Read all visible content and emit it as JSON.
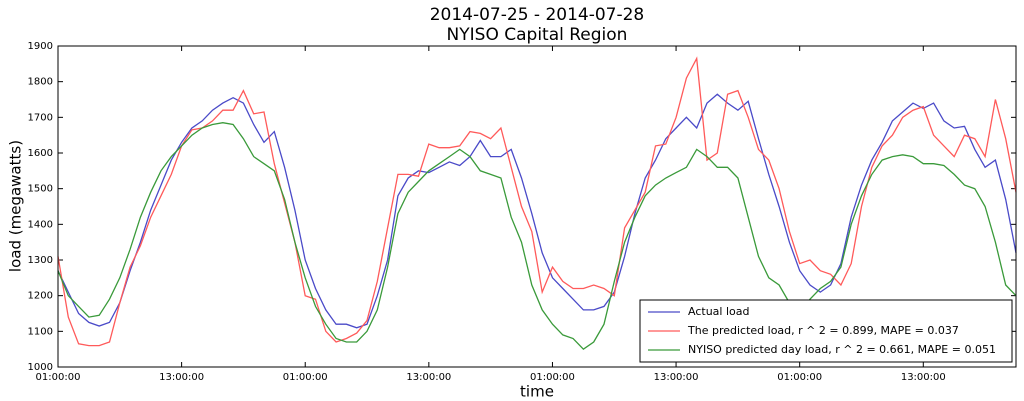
{
  "chart_data": {
    "type": "line",
    "title": "2014-07-25 - 2014-07-28",
    "subtitle": "NYISO Capital Region",
    "x_label": "time",
    "y_label": "load (megawatts)",
    "xlim": [
      0,
      93
    ],
    "ylim": [
      1000,
      1900
    ],
    "yticks": [
      1000,
      1100,
      1200,
      1300,
      1400,
      1500,
      1600,
      1700,
      1800,
      1900
    ],
    "xticks": [
      {
        "value": 0,
        "label": "01:00:00"
      },
      {
        "value": 12,
        "label": "13:00:00"
      },
      {
        "value": 24,
        "label": "01:00:00"
      },
      {
        "value": 36,
        "label": "13:00:00"
      },
      {
        "value": 48,
        "label": "01:00:00"
      },
      {
        "value": 60,
        "label": "13:00:00"
      },
      {
        "value": 72,
        "label": "01:00:00"
      },
      {
        "value": 84,
        "label": "13:00:00"
      }
    ],
    "legend": "lower right",
    "x": [
      0,
      1,
      2,
      3,
      4,
      5,
      6,
      7,
      8,
      9,
      10,
      11,
      12,
      13,
      14,
      15,
      16,
      17,
      18,
      19,
      20,
      21,
      22,
      23,
      24,
      25,
      26,
      27,
      28,
      29,
      30,
      31,
      32,
      33,
      34,
      35,
      36,
      37,
      38,
      39,
      40,
      41,
      42,
      43,
      44,
      45,
      46,
      47,
      48,
      49,
      50,
      51,
      52,
      53,
      54,
      55,
      56,
      57,
      58,
      59,
      60,
      61,
      62,
      63,
      64,
      65,
      66,
      67,
      68,
      69,
      70,
      71,
      72,
      73,
      74,
      75,
      76,
      77,
      78,
      79,
      80,
      81,
      82,
      83,
      84,
      85,
      86,
      87,
      88,
      89,
      90,
      91,
      92,
      93
    ],
    "series": [
      {
        "name": "Actual load",
        "color": "#4a4ac8",
        "values": [
          1270,
          1210,
          1150,
          1125,
          1115,
          1125,
          1180,
          1270,
          1350,
          1440,
          1510,
          1580,
          1630,
          1670,
          1690,
          1720,
          1740,
          1755,
          1740,
          1680,
          1630,
          1660,
          1560,
          1440,
          1300,
          1220,
          1160,
          1120,
          1120,
          1110,
          1120,
          1200,
          1300,
          1480,
          1530,
          1550,
          1545,
          1560,
          1575,
          1565,
          1590,
          1635,
          1590,
          1590,
          1610,
          1530,
          1430,
          1320,
          1250,
          1220,
          1190,
          1160,
          1160,
          1170,
          1210,
          1310,
          1430,
          1530,
          1580,
          1640,
          1670,
          1700,
          1670,
          1740,
          1765,
          1740,
          1720,
          1745,
          1640,
          1540,
          1450,
          1350,
          1270,
          1230,
          1210,
          1230,
          1290,
          1420,
          1510,
          1580,
          1630,
          1690,
          1715,
          1740,
          1725,
          1740,
          1690,
          1670,
          1675,
          1610,
          1560,
          1580,
          1470,
          1320
        ]
      },
      {
        "name": "The predicted load, r ^ 2 = 0.899, MAPE = 0.037",
        "color": "#ff5a5a",
        "values": [
          1310,
          1140,
          1065,
          1060,
          1060,
          1070,
          1180,
          1280,
          1340,
          1420,
          1480,
          1540,
          1620,
          1665,
          1670,
          1690,
          1720,
          1720,
          1775,
          1710,
          1715,
          1570,
          1460,
          1350,
          1200,
          1190,
          1100,
          1070,
          1080,
          1095,
          1130,
          1240,
          1390,
          1540,
          1540,
          1535,
          1625,
          1615,
          1615,
          1620,
          1660,
          1655,
          1640,
          1670,
          1560,
          1450,
          1380,
          1210,
          1280,
          1240,
          1220,
          1220,
          1230,
          1220,
          1200,
          1390,
          1440,
          1490,
          1620,
          1625,
          1700,
          1810,
          1865,
          1580,
          1600,
          1765,
          1775,
          1700,
          1610,
          1580,
          1500,
          1380,
          1290,
          1300,
          1270,
          1260,
          1230,
          1290,
          1450,
          1560,
          1620,
          1650,
          1700,
          1720,
          1730,
          1650,
          1620,
          1590,
          1650,
          1640,
          1590,
          1750,
          1640,
          1490
        ]
      },
      {
        "name": "NYISO predicted day load, r ^ 2 = 0.661, MAPE = 0.051",
        "color": "#3a9a3a",
        "values": [
          1270,
          1200,
          1170,
          1140,
          1145,
          1190,
          1250,
          1330,
          1420,
          1490,
          1550,
          1590,
          1620,
          1650,
          1670,
          1680,
          1685,
          1680,
          1640,
          1590,
          1570,
          1550,
          1470,
          1350,
          1250,
          1170,
          1120,
          1080,
          1070,
          1070,
          1100,
          1160,
          1280,
          1430,
          1490,
          1520,
          1550,
          1570,
          1590,
          1610,
          1590,
          1550,
          1540,
          1530,
          1420,
          1350,
          1230,
          1160,
          1120,
          1090,
          1080,
          1050,
          1070,
          1120,
          1240,
          1350,
          1420,
          1480,
          1510,
          1530,
          1545,
          1560,
          1610,
          1590,
          1560,
          1560,
          1530,
          1420,
          1310,
          1250,
          1230,
          1180,
          1150,
          1190,
          1220,
          1240,
          1280,
          1400,
          1480,
          1540,
          1580,
          1590,
          1595,
          1590,
          1570,
          1570,
          1565,
          1540,
          1510,
          1500,
          1450,
          1350,
          1230,
          1200
        ]
      }
    ]
  }
}
